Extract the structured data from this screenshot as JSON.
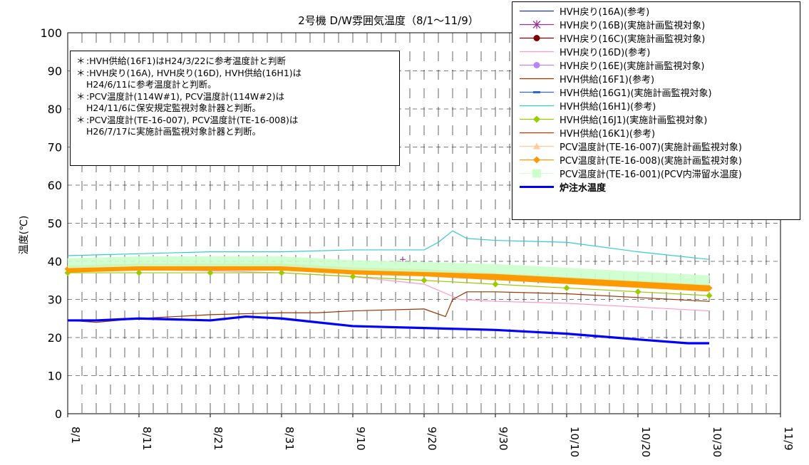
{
  "chart_data": {
    "type": "line",
    "title": "2号機 D/W雰囲気温度（8/1～11/9）",
    "ylabel": "温度(℃)",
    "xlabel": "",
    "ylim": [
      0,
      100
    ],
    "yticks": [
      0,
      10,
      20,
      30,
      40,
      50,
      60,
      70,
      80,
      90,
      100
    ],
    "xlim": [
      "8/1",
      "11/9"
    ],
    "xticks": [
      "8/1",
      "8/11",
      "8/21",
      "8/31",
      "9/10",
      "9/20",
      "9/30",
      "10/10",
      "10/20",
      "10/30",
      "11/9"
    ],
    "grid": "dashed vertical and horizontal",
    "legend_position": "top-right",
    "series": [
      {
        "name": "HVH戻り(16A)(参考)",
        "color": "#1f3a93",
        "marker": "none",
        "x": [
          "8/1",
          "11/9"
        ],
        "values": [
          null,
          null
        ]
      },
      {
        "name": "HVH戻り(16B)(実施計画監視対象)",
        "color": "#993399",
        "marker": "star",
        "x": [
          "9/17"
        ],
        "values": [
          40.5
        ]
      },
      {
        "name": "HVH戻り(16C)(実施計画監視対象)",
        "color": "#800000",
        "marker": "circle",
        "x": [
          "8/1",
          "11/9"
        ],
        "values": [
          null,
          null
        ]
      },
      {
        "name": "HVH戻り(16D)(参考)",
        "color": "#ff99cc",
        "marker": "none",
        "x": [
          "8/1",
          "8/11",
          "8/21",
          "8/31",
          "9/10",
          "9/15",
          "9/20",
          "9/25",
          "9/30",
          "10/10",
          "10/20",
          "10/30"
        ],
        "values": [
          37.5,
          37.8,
          37.5,
          37.0,
          36.0,
          35.0,
          34.0,
          30.0,
          29.5,
          29.0,
          28.0,
          27.0
        ]
      },
      {
        "name": "HVH戻り(16E)(実施計画監視対象)",
        "color": "#b685ff",
        "marker": "circle",
        "x": [
          "8/1",
          "11/9"
        ],
        "values": [
          null,
          null
        ]
      },
      {
        "name": "HVH供給(16F1)(参考)",
        "color": "#993300",
        "marker": "none",
        "x": [
          "8/1",
          "8/5",
          "8/11",
          "8/21",
          "8/31",
          "9/5",
          "9/10",
          "9/20",
          "9/23",
          "9/24",
          "9/26",
          "9/30",
          "10/10",
          "10/20",
          "10/30"
        ],
        "values": [
          24.5,
          24.0,
          25.0,
          26.0,
          26.5,
          26.5,
          27.0,
          27.5,
          25.5,
          30.0,
          32.0,
          32.0,
          31.5,
          30.5,
          29.5
        ]
      },
      {
        "name": "HVH供給(16G1)(実施計画監視対象)",
        "color": "#3366cc",
        "marker": "dash",
        "x": [
          "8/1",
          "11/9"
        ],
        "values": [
          null,
          null
        ]
      },
      {
        "name": "HVH供給(16H1)(参考)",
        "color": "#33cccc",
        "marker": "none",
        "x": [
          "8/1",
          "8/11",
          "8/21",
          "8/31",
          "9/10",
          "9/20",
          "9/22",
          "9/24",
          "9/26",
          "9/30",
          "10/10",
          "10/20",
          "10/30"
        ],
        "values": [
          41.5,
          42.0,
          42.5,
          42.5,
          43.0,
          43.0,
          45.0,
          48.0,
          46.0,
          45.5,
          45.0,
          42.5,
          40.5
        ]
      },
      {
        "name": "HVH供給(16J1)(実施計画監視対象)",
        "color": "#99cc00",
        "marker": "diamond",
        "x": [
          "8/1",
          "8/11",
          "8/21",
          "8/31",
          "9/10",
          "9/20",
          "9/30",
          "10/10",
          "10/20",
          "10/30"
        ],
        "values": [
          37.0,
          37.0,
          37.0,
          37.0,
          36.0,
          35.0,
          34.0,
          33.0,
          32.0,
          31.0
        ]
      },
      {
        "name": "HVH供給(16K1)(参考)",
        "color": "#cc3300",
        "marker": "none",
        "x": [
          "8/1",
          "11/9"
        ],
        "values": [
          null,
          null
        ]
      },
      {
        "name": "PCV温度計(TE-16-007)(実施計画監視対象)",
        "color": "#ffcc99",
        "marker": "triangle",
        "x": [
          "8/1",
          "11/9"
        ],
        "values": [
          null,
          null
        ]
      },
      {
        "name": "PCV温度計(TE-16-008)(実施計画監視対象)",
        "color": "#ff9900",
        "marker": "diamond",
        "x": [
          "8/1",
          "8/11",
          "8/21",
          "8/31",
          "9/10",
          "9/20",
          "9/30",
          "10/10",
          "10/20",
          "10/30"
        ],
        "values": [
          38.0,
          38.5,
          38.5,
          38.5,
          37.5,
          37.0,
          36.0,
          35.0,
          34.0,
          33.0
        ]
      },
      {
        "name": "PCV温度計(TE-16-001)(PCV内滞留水温度)",
        "color": "#ccffcc",
        "marker": "square",
        "x": [
          "8/1",
          "8/11",
          "8/21",
          "8/31",
          "9/10",
          "9/20",
          "9/30",
          "10/10",
          "10/20",
          "10/30"
        ],
        "values": [
          39.5,
          40.0,
          40.0,
          40.0,
          39.0,
          38.5,
          38.0,
          37.0,
          36.0,
          35.0
        ]
      },
      {
        "name": "炉注水温度",
        "color": "#0000ff",
        "marker": "none",
        "x": [
          "8/1",
          "8/5",
          "8/11",
          "8/21",
          "8/26",
          "8/31",
          "9/5",
          "9/10",
          "9/20",
          "9/30",
          "10/10",
          "10/20",
          "10/27",
          "10/30"
        ],
        "values": [
          24.5,
          24.5,
          25.0,
          24.5,
          25.5,
          25.0,
          24.0,
          23.0,
          22.5,
          22.0,
          21.0,
          19.5,
          18.5,
          18.5
        ]
      }
    ]
  },
  "notes": [
    {
      "mark": "＊",
      "text": ":HVH供給(16F1)はH24/3/22に参考温度計と判断"
    },
    {
      "mark": "＊",
      "text": ":HVH戻り(16A), HVH戻り(16D), HVH供給(16H1)は"
    },
    {
      "mark": "",
      "text": "H24/6/11に参考温度計と判断。"
    },
    {
      "mark": "＊",
      "text": ":PCV温度計(114W#1), PCV温度計(114W#2)は"
    },
    {
      "mark": "",
      "text": "H24/11/6に保安規定監視対象計器と判断。"
    },
    {
      "mark": "＊",
      "text": ":PCV温度計(TE-16-007), PCV温度計(TE-16-008)は"
    },
    {
      "mark": "",
      "text": "H26/7/17に実施計画監視対象計器と判断。"
    }
  ]
}
